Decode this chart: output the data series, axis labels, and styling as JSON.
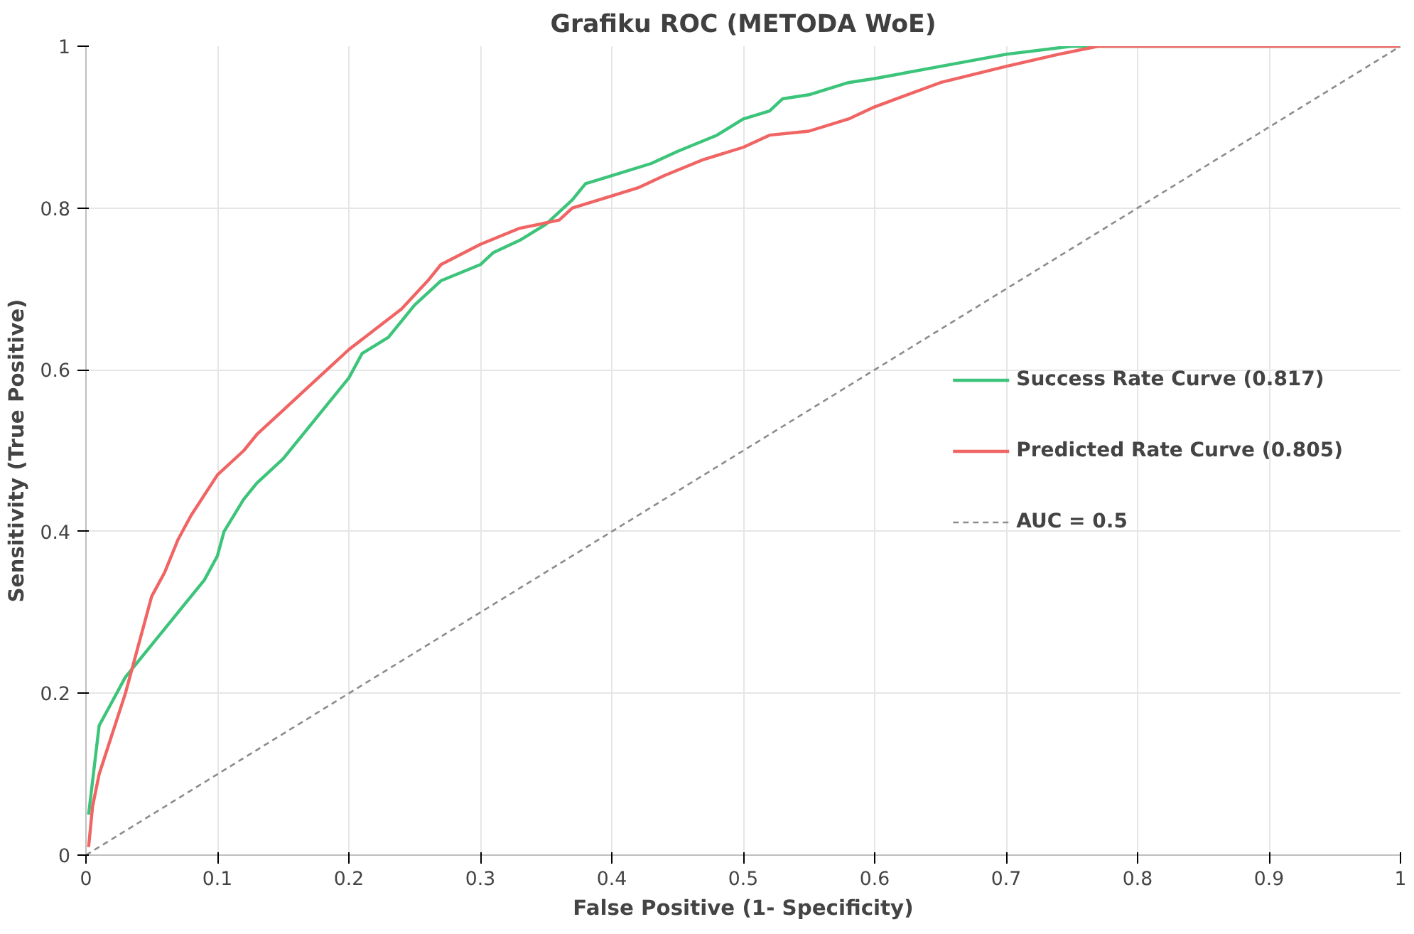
{
  "chart_data": {
    "type": "line",
    "title": "Grafiku ROC (METODA WoE)",
    "xlabel": "False Positive (1- Specificity)",
    "ylabel": "Sensitivity (True Positive)",
    "xlim": [
      0,
      1
    ],
    "ylim": [
      0,
      1
    ],
    "xticks": [
      0,
      0.1,
      0.2,
      0.3,
      0.4,
      0.5,
      0.6,
      0.7,
      0.8,
      0.9,
      1
    ],
    "yticks": [
      0,
      0.2,
      0.4,
      0.6,
      0.8,
      1
    ],
    "grid": true,
    "legend": "right",
    "line_style": "solid",
    "marker": "none",
    "series": [
      {
        "name": "Success Rate Curve (0.817)",
        "color": "#3cc47a",
        "x": [
          0.002,
          0.01,
          0.02,
          0.03,
          0.05,
          0.07,
          0.09,
          0.1,
          0.105,
          0.12,
          0.13,
          0.15,
          0.17,
          0.19,
          0.2,
          0.21,
          0.23,
          0.25,
          0.27,
          0.3,
          0.31,
          0.33,
          0.35,
          0.37,
          0.38,
          0.4,
          0.43,
          0.45,
          0.48,
          0.5,
          0.52,
          0.53,
          0.55,
          0.58,
          0.6,
          0.65,
          0.7,
          0.75,
          1.0
        ],
        "values": [
          0.05,
          0.16,
          0.19,
          0.22,
          0.26,
          0.3,
          0.34,
          0.37,
          0.4,
          0.44,
          0.46,
          0.49,
          0.53,
          0.57,
          0.59,
          0.62,
          0.64,
          0.68,
          0.71,
          0.73,
          0.745,
          0.76,
          0.78,
          0.81,
          0.83,
          0.84,
          0.855,
          0.87,
          0.89,
          0.91,
          0.92,
          0.935,
          0.94,
          0.955,
          0.96,
          0.975,
          0.99,
          1.0,
          1.0
        ]
      },
      {
        "name": "Predicted Rate Curve (0.805)",
        "color": "#f06464",
        "x": [
          0.002,
          0.005,
          0.01,
          0.02,
          0.03,
          0.04,
          0.05,
          0.06,
          0.07,
          0.08,
          0.1,
          0.12,
          0.13,
          0.15,
          0.17,
          0.19,
          0.2,
          0.22,
          0.24,
          0.26,
          0.27,
          0.3,
          0.33,
          0.36,
          0.37,
          0.4,
          0.42,
          0.44,
          0.47,
          0.5,
          0.52,
          0.55,
          0.58,
          0.6,
          0.65,
          0.7,
          0.74,
          0.77,
          1.0
        ],
        "values": [
          0.01,
          0.06,
          0.1,
          0.15,
          0.2,
          0.26,
          0.32,
          0.35,
          0.39,
          0.42,
          0.47,
          0.5,
          0.52,
          0.55,
          0.58,
          0.61,
          0.625,
          0.65,
          0.675,
          0.71,
          0.73,
          0.755,
          0.775,
          0.785,
          0.8,
          0.815,
          0.825,
          0.84,
          0.86,
          0.875,
          0.89,
          0.895,
          0.91,
          0.925,
          0.955,
          0.975,
          0.99,
          1.0,
          1.0
        ]
      },
      {
        "name": "AUC = 0.5",
        "color": "#8c8c8c",
        "line_style": "dashed",
        "x": [
          0,
          1
        ],
        "values": [
          0,
          1
        ]
      }
    ]
  }
}
